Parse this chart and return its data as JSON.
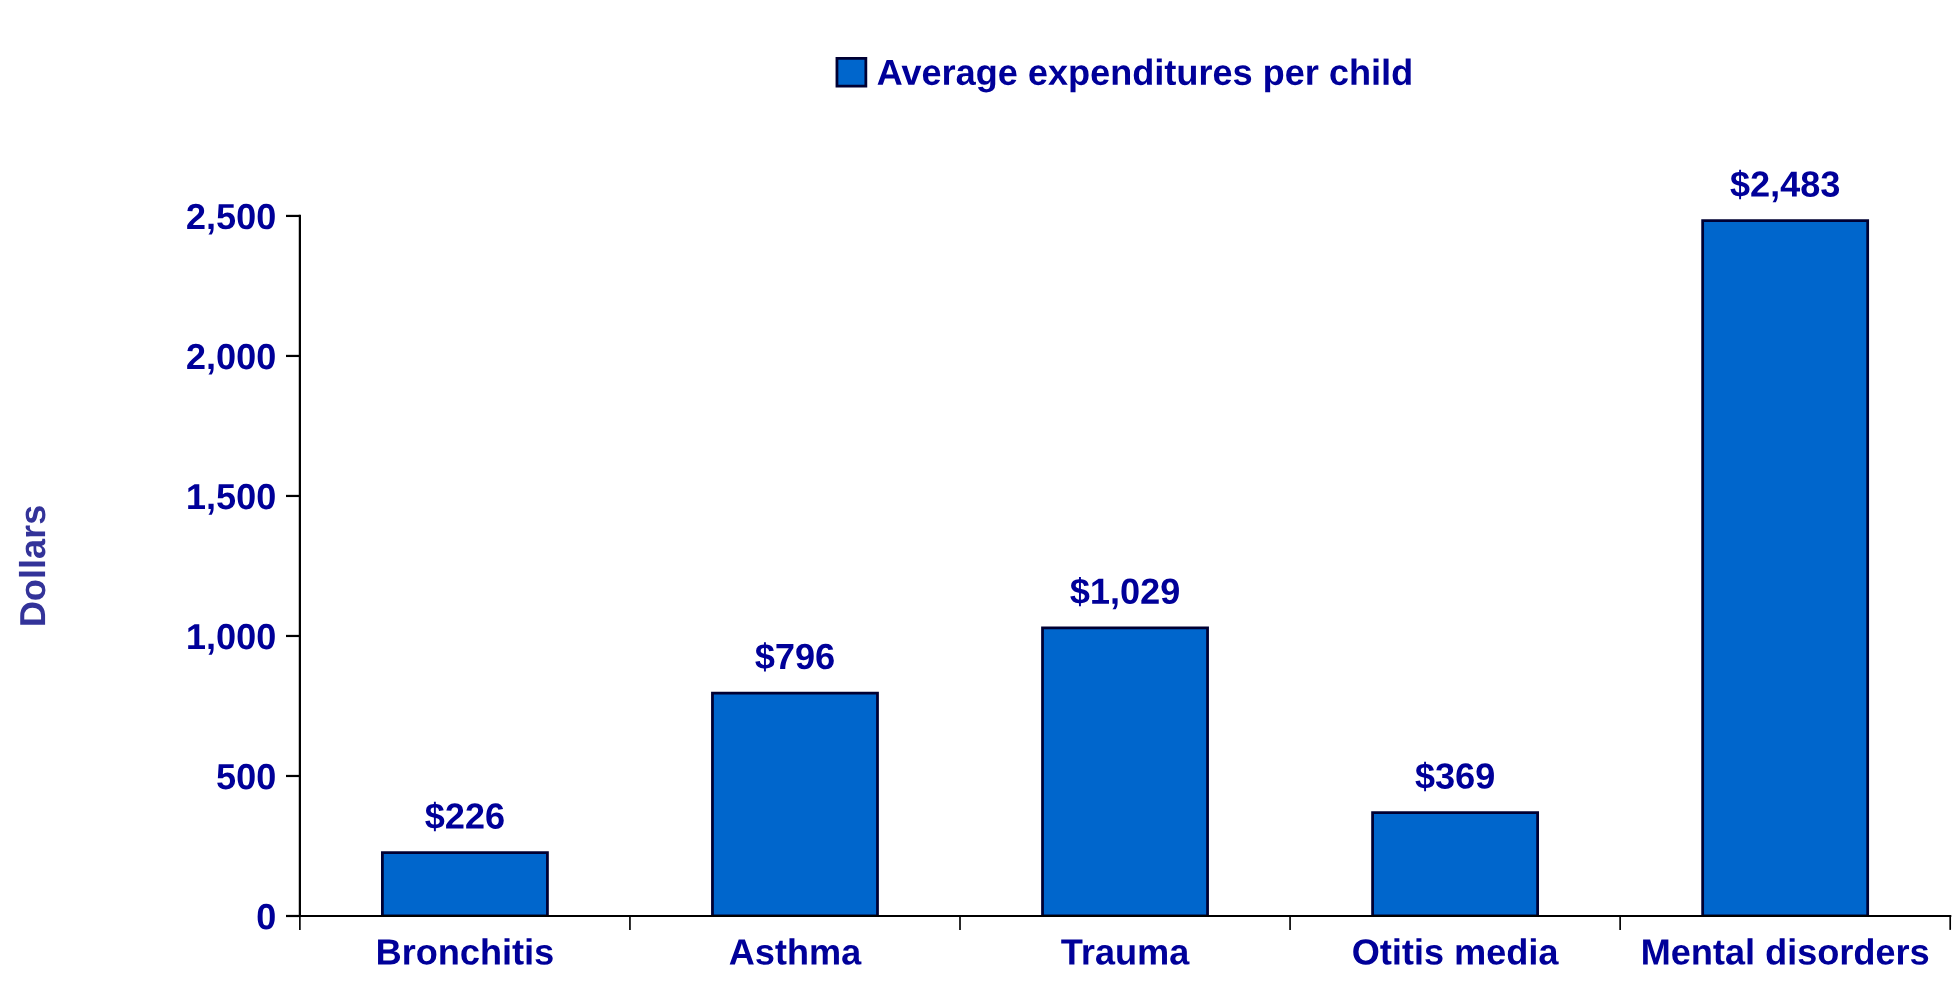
{
  "chart_data": {
    "type": "bar",
    "ylabel": "Dollars",
    "categories": [
      "Bronchitis",
      "Asthma",
      "Trauma",
      "Otitis media",
      "Mental disorders"
    ],
    "series": [
      {
        "name": "Average expenditures per child",
        "color": "#0066cc",
        "values": [
          226,
          796,
          1029,
          369,
          2483
        ],
        "value_labels": [
          "$226",
          "$796",
          "$1,029",
          "$369",
          "$2,483"
        ]
      }
    ],
    "ylim": [
      0,
      2500
    ],
    "yticks": [
      {
        "value": 0,
        "label": "0"
      },
      {
        "value": 500,
        "label": "500"
      },
      {
        "value": 1000,
        "label": "1,000"
      },
      {
        "value": 1500,
        "label": "1,500"
      },
      {
        "value": 2000,
        "label": "2,000"
      },
      {
        "value": 2500,
        "label": "2,500"
      }
    ],
    "grid": false,
    "legend": "top"
  }
}
